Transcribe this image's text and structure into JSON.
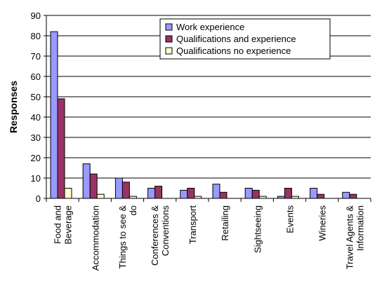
{
  "chart_data": {
    "type": "bar",
    "title": "",
    "xlabel": "",
    "ylabel": "Responses",
    "ylim": [
      0,
      90
    ],
    "yticks": [
      0,
      10,
      20,
      30,
      40,
      50,
      60,
      70,
      80,
      90
    ],
    "grid": true,
    "legend_position": "top-right",
    "categories": [
      [
        "Food and",
        "Beverage"
      ],
      [
        "Accommodation"
      ],
      [
        "Things to see &",
        "do"
      ],
      [
        "Conferences &",
        "Conventions"
      ],
      [
        "Transport"
      ],
      [
        "Retailing"
      ],
      [
        "Sightseeing"
      ],
      [
        "Events"
      ],
      [
        "Wineries"
      ],
      [
        "Travel Agents &",
        "Information"
      ]
    ],
    "series": [
      {
        "name": "Work experience",
        "color": "#9999ff",
        "values": [
          82,
          17,
          10,
          5,
          4,
          7,
          5,
          1,
          5,
          3
        ]
      },
      {
        "name": "Qualifications and experience",
        "color": "#993366",
        "values": [
          49,
          12,
          8,
          6,
          5,
          3,
          4,
          5,
          2,
          2
        ]
      },
      {
        "name": "Qualifications no experience",
        "color": "#ffffcc",
        "values": [
          5,
          2,
          1,
          0,
          1,
          0,
          1,
          1,
          0,
          0
        ]
      }
    ]
  }
}
